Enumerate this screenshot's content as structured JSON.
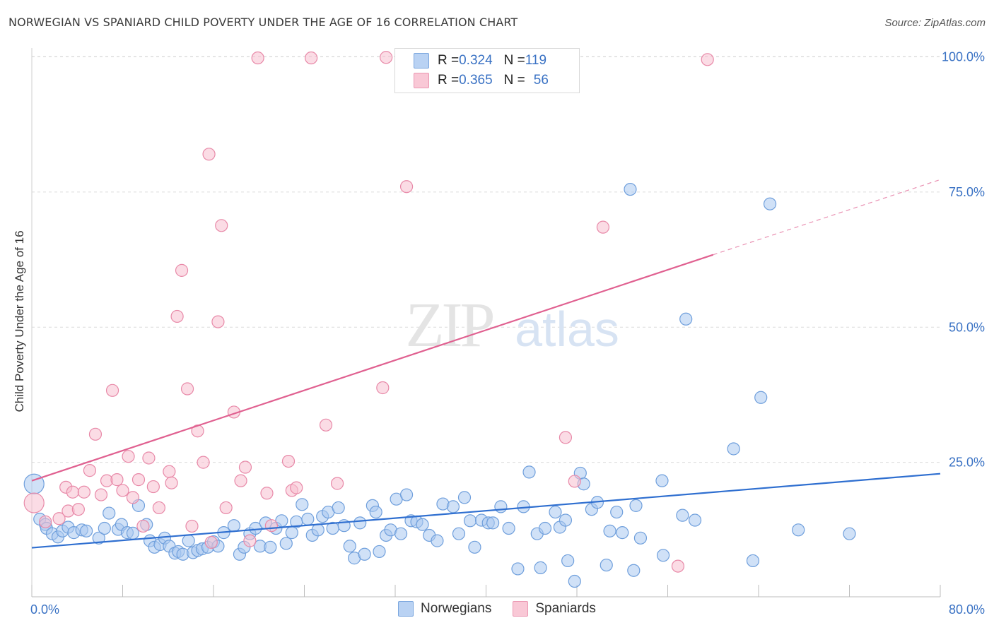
{
  "header": {
    "title": "NORWEGIAN VS SPANIARD CHILD POVERTY UNDER THE AGE OF 16 CORRELATION CHART",
    "source": "Source: ZipAtlas.com"
  },
  "watermark": {
    "zip": "ZIP",
    "atlas": "atlas"
  },
  "legend": {
    "top": [
      {
        "r_label": "R = ",
        "r_value": "0.324",
        "n_label": "N = ",
        "n_value": "119"
      },
      {
        "r_label": "R = ",
        "r_value": "0.365",
        "n_label": "N = ",
        "n_value": "56"
      }
    ],
    "bottom": [
      "Norwegians",
      "Spaniards"
    ]
  },
  "colors": {
    "norwegian_fill": "#a9c8f0",
    "norwegian_stroke": "#6f9fdc",
    "norwegian_line": "#2f6fd0",
    "spaniard_fill": "#f7bfd0",
    "spaniard_stroke": "#e889a8",
    "spaniard_line": "#e06090",
    "axis_label": "#3a72c4",
    "grid": "#dcdcdc"
  },
  "chart_data": {
    "type": "scatter",
    "title": "NORWEGIAN VS SPANIARD CHILD POVERTY UNDER THE AGE OF 16 CORRELATION CHART",
    "xlabel": "",
    "ylabel": "Child Poverty Under the Age of 16",
    "xlim": [
      0,
      80
    ],
    "ylim": [
      0,
      102
    ],
    "x_tick_labels": [
      "0.0%",
      "80.0%"
    ],
    "y_ticks": [
      25,
      50,
      75,
      100
    ],
    "y_tick_labels": [
      "25.0%",
      "50.0%",
      "75.0%",
      "100.0%"
    ],
    "grid": true,
    "legend_position": "top-center",
    "series": [
      {
        "name": "Norwegians",
        "r": 0.324,
        "n": 119,
        "trend": {
          "x0": 0,
          "y0": 9.2,
          "x1": 80,
          "y1": 22.9
        },
        "points": [
          [
            0.2,
            21.0
          ],
          [
            0.7,
            14.5
          ],
          [
            1.2,
            13.5
          ],
          [
            1.3,
            12.8
          ],
          [
            1.8,
            11.8
          ],
          [
            2.3,
            11.2
          ],
          [
            2.7,
            12.3
          ],
          [
            3.2,
            13.0
          ],
          [
            3.7,
            12.0
          ],
          [
            4.4,
            12.5
          ],
          [
            4.8,
            12.3
          ],
          [
            5.9,
            11.0
          ],
          [
            6.4,
            12.8
          ],
          [
            6.8,
            15.6
          ],
          [
            7.6,
            12.6
          ],
          [
            7.9,
            13.5
          ],
          [
            8.4,
            12.0
          ],
          [
            8.9,
            11.9
          ],
          [
            9.4,
            17.0
          ],
          [
            10.1,
            13.5
          ],
          [
            10.4,
            10.5
          ],
          [
            10.8,
            9.3
          ],
          [
            11.3,
            9.8
          ],
          [
            11.7,
            11.0
          ],
          [
            12.1,
            9.5
          ],
          [
            12.6,
            8.2
          ],
          [
            12.9,
            8.5
          ],
          [
            13.3,
            8.0
          ],
          [
            13.8,
            10.5
          ],
          [
            14.2,
            8.3
          ],
          [
            14.6,
            8.7
          ],
          [
            15.0,
            9.0
          ],
          [
            15.5,
            9.3
          ],
          [
            16.0,
            10.3
          ],
          [
            16.4,
            9.5
          ],
          [
            16.9,
            12.0
          ],
          [
            17.8,
            13.3
          ],
          [
            18.3,
            8.0
          ],
          [
            18.7,
            9.3
          ],
          [
            19.2,
            11.8
          ],
          [
            19.7,
            12.8
          ],
          [
            20.1,
            9.5
          ],
          [
            20.6,
            13.8
          ],
          [
            21.0,
            9.3
          ],
          [
            21.5,
            12.8
          ],
          [
            22.0,
            14.2
          ],
          [
            22.4,
            10.0
          ],
          [
            22.9,
            12.0
          ],
          [
            23.3,
            14.0
          ],
          [
            23.8,
            17.2
          ],
          [
            24.3,
            14.5
          ],
          [
            24.7,
            11.5
          ],
          [
            25.2,
            12.5
          ],
          [
            25.6,
            15.0
          ],
          [
            26.1,
            15.8
          ],
          [
            26.5,
            12.8
          ],
          [
            27.0,
            16.6
          ],
          [
            27.5,
            13.3
          ],
          [
            28.0,
            9.5
          ],
          [
            28.4,
            7.3
          ],
          [
            28.9,
            13.8
          ],
          [
            29.3,
            8.0
          ],
          [
            30.0,
            17.0
          ],
          [
            30.3,
            15.8
          ],
          [
            30.6,
            8.5
          ],
          [
            31.2,
            11.5
          ],
          [
            31.6,
            12.5
          ],
          [
            32.1,
            18.2
          ],
          [
            32.5,
            11.8
          ],
          [
            33.0,
            19.0
          ],
          [
            33.4,
            14.2
          ],
          [
            33.9,
            14.0
          ],
          [
            34.4,
            13.5
          ],
          [
            35.0,
            11.5
          ],
          [
            35.7,
            10.5
          ],
          [
            36.2,
            17.3
          ],
          [
            37.1,
            16.8
          ],
          [
            37.6,
            11.8
          ],
          [
            38.1,
            18.5
          ],
          [
            38.6,
            14.2
          ],
          [
            39.0,
            9.3
          ],
          [
            39.6,
            14.3
          ],
          [
            40.2,
            13.8
          ],
          [
            40.6,
            13.8
          ],
          [
            41.3,
            16.8
          ],
          [
            42.0,
            12.8
          ],
          [
            42.8,
            5.3
          ],
          [
            43.3,
            16.8
          ],
          [
            43.8,
            23.2
          ],
          [
            44.5,
            11.8
          ],
          [
            44.8,
            5.5
          ],
          [
            45.2,
            12.8
          ],
          [
            46.1,
            15.8
          ],
          [
            46.5,
            13.0
          ],
          [
            47.0,
            14.3
          ],
          [
            47.2,
            6.8
          ],
          [
            47.8,
            3.0
          ],
          [
            48.3,
            23.0
          ],
          [
            48.6,
            21.0
          ],
          [
            49.3,
            16.3
          ],
          [
            49.8,
            17.6
          ],
          [
            50.6,
            6.0
          ],
          [
            50.9,
            12.3
          ],
          [
            51.5,
            15.8
          ],
          [
            52.0,
            12.0
          ],
          [
            52.7,
            75.5
          ],
          [
            53.0,
            5.0
          ],
          [
            53.2,
            17.0
          ],
          [
            53.6,
            11.0
          ],
          [
            55.6,
            7.8
          ],
          [
            55.5,
            21.6
          ],
          [
            57.3,
            15.2
          ],
          [
            57.6,
            51.5
          ],
          [
            58.4,
            14.3
          ],
          [
            61.8,
            27.5
          ],
          [
            64.2,
            37.0
          ],
          [
            63.5,
            6.8
          ],
          [
            65.0,
            72.8
          ],
          [
            67.5,
            12.5
          ],
          [
            72.0,
            11.8
          ]
        ]
      },
      {
        "name": "Spaniards",
        "r": 0.365,
        "n": 56,
        "trend": {
          "x0": 0,
          "y0": 21.6,
          "x1": 60,
          "y1": 63.4,
          "dash_to_x": 80,
          "dash_to_y": 77.3
        },
        "points": [
          [
            0.2,
            17.5
          ],
          [
            1.2,
            14.0
          ],
          [
            2.4,
            14.6
          ],
          [
            3.2,
            16.0
          ],
          [
            3.0,
            20.4
          ],
          [
            3.6,
            19.5
          ],
          [
            4.1,
            16.3
          ],
          [
            4.6,
            19.5
          ],
          [
            5.1,
            23.5
          ],
          [
            5.6,
            30.2
          ],
          [
            6.1,
            19.0
          ],
          [
            6.6,
            21.6
          ],
          [
            7.1,
            38.3
          ],
          [
            7.5,
            21.8
          ],
          [
            8.0,
            19.8
          ],
          [
            8.5,
            26.1
          ],
          [
            8.9,
            18.5
          ],
          [
            9.4,
            21.8
          ],
          [
            9.8,
            13.2
          ],
          [
            10.3,
            25.8
          ],
          [
            10.7,
            20.5
          ],
          [
            11.2,
            16.6
          ],
          [
            12.1,
            23.3
          ],
          [
            12.3,
            21.2
          ],
          [
            12.8,
            52.0
          ],
          [
            13.2,
            60.5
          ],
          [
            13.7,
            38.6
          ],
          [
            14.1,
            13.2
          ],
          [
            14.6,
            30.8
          ],
          [
            15.1,
            25.0
          ],
          [
            15.6,
            82.0
          ],
          [
            15.8,
            10.2
          ],
          [
            16.4,
            51.0
          ],
          [
            16.7,
            68.8
          ],
          [
            17.1,
            16.6
          ],
          [
            17.8,
            34.3
          ],
          [
            18.4,
            21.6
          ],
          [
            18.8,
            24.1
          ],
          [
            19.2,
            10.5
          ],
          [
            19.9,
            99.8
          ],
          [
            20.7,
            19.3
          ],
          [
            21.1,
            13.3
          ],
          [
            22.6,
            25.2
          ],
          [
            22.9,
            19.8
          ],
          [
            23.3,
            20.3
          ],
          [
            24.6,
            99.8
          ],
          [
            25.9,
            31.9
          ],
          [
            26.9,
            21.1
          ],
          [
            30.9,
            38.8
          ],
          [
            31.2,
            99.9
          ],
          [
            33.0,
            76.0
          ],
          [
            47.0,
            29.6
          ],
          [
            47.8,
            21.5
          ],
          [
            50.3,
            68.5
          ],
          [
            56.9,
            5.8
          ],
          [
            59.5,
            99.5
          ]
        ]
      }
    ]
  }
}
